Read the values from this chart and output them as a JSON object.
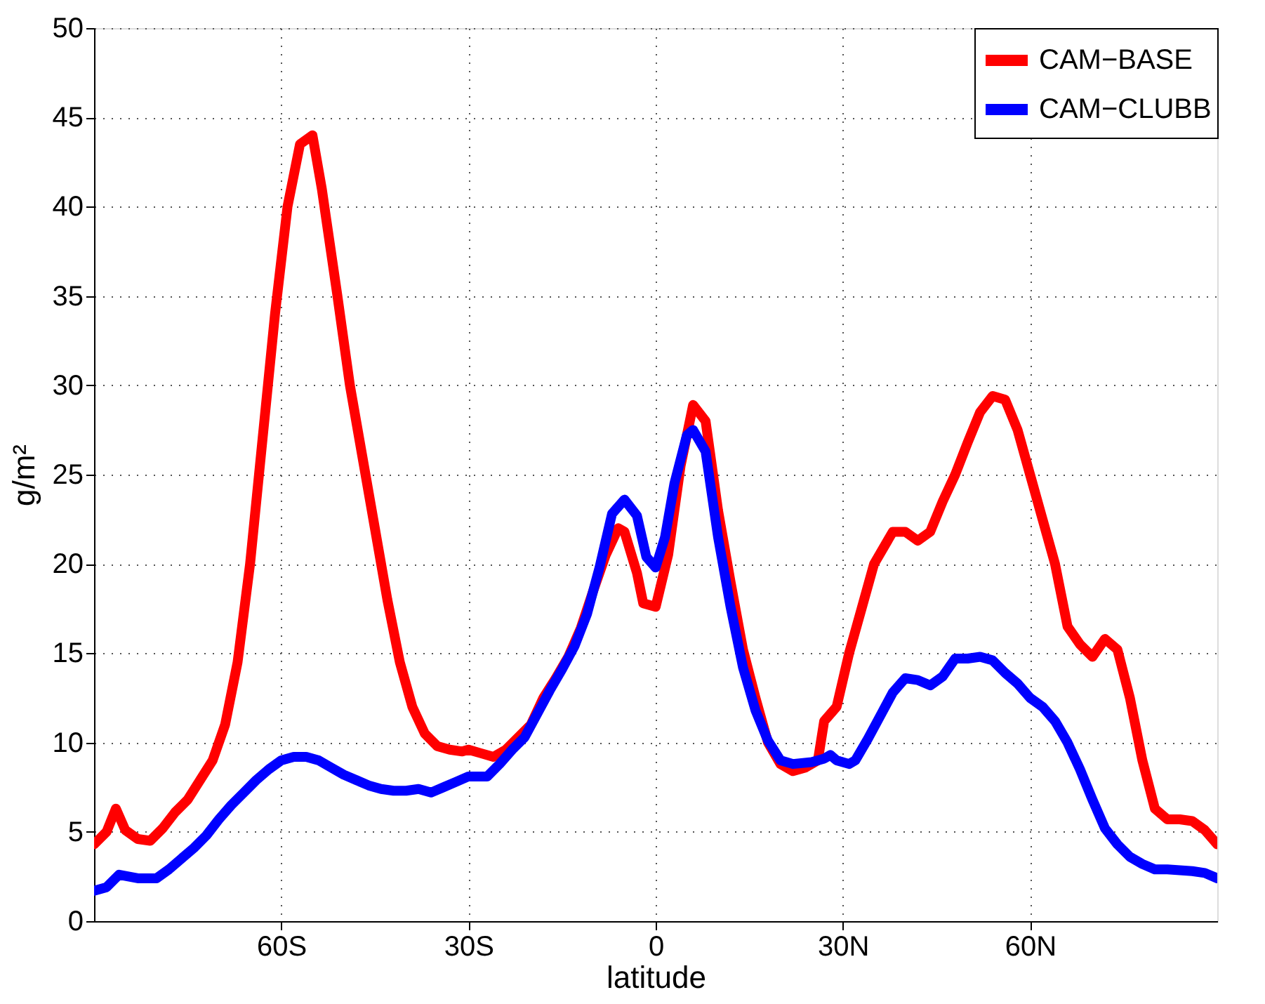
{
  "chart_data": {
    "type": "line",
    "xlabel": "latitude",
    "ylabel": "g/m²",
    "xlim": [
      -90,
      90
    ],
    "ylim": [
      0,
      50
    ],
    "xticks": [
      {
        "value": -60,
        "label": "60S"
      },
      {
        "value": -30,
        "label": "30S"
      },
      {
        "value": 0,
        "label": "0"
      },
      {
        "value": 30,
        "label": "30N"
      },
      {
        "value": 60,
        "label": "60N"
      }
    ],
    "yticks": [
      0,
      5,
      10,
      15,
      20,
      25,
      30,
      35,
      40,
      45,
      50
    ],
    "grid": true,
    "legend": "top right",
    "line_style": "solid",
    "marker": "none",
    "series": [
      {
        "name": "CAM−BASE",
        "color": "#ff0000",
        "x": [
          -90,
          -88,
          -86.5,
          -85,
          -83,
          -81,
          -79,
          -77,
          -75,
          -73,
          -71,
          -69,
          -67,
          -65,
          -63,
          -61,
          -59,
          -57,
          -55,
          -53.5,
          -51,
          -49,
          -47,
          -45,
          -43,
          -41,
          -39,
          -37,
          -35,
          -33,
          -31,
          -30,
          -28,
          -26,
          -24,
          -22,
          -20,
          -18,
          -16,
          -14,
          -12,
          -10,
          -8,
          -6,
          -5,
          -3,
          -2,
          0,
          2,
          4,
          6,
          8,
          10,
          12,
          14,
          16,
          18,
          20,
          22,
          24,
          26,
          27,
          29,
          31,
          33,
          35,
          38,
          40,
          42,
          44,
          46,
          48,
          50,
          52,
          54,
          56,
          58,
          60,
          62,
          64,
          66,
          68,
          70,
          72,
          74,
          76,
          78,
          80,
          82,
          84,
          86,
          88,
          90
        ],
        "values": [
          4.3,
          5.0,
          6.3,
          5.1,
          4.6,
          4.5,
          5.2,
          6.1,
          6.8,
          7.9,
          9.0,
          11.0,
          14.5,
          20,
          27,
          34,
          40,
          43.5,
          44,
          41,
          35,
          30,
          26,
          22,
          18,
          14.5,
          12,
          10.5,
          9.8,
          9.6,
          9.5,
          9.6,
          9.4,
          9.2,
          9.6,
          10.3,
          11,
          12.5,
          13.6,
          14.8,
          16.4,
          18.5,
          20.5,
          22,
          21.8,
          19.5,
          17.8,
          17.6,
          20.5,
          25.5,
          28.9,
          28,
          23,
          19,
          15.2,
          12.5,
          10,
          8.8,
          8.4,
          8.6,
          9.0,
          11.2,
          12,
          15,
          17.5,
          20,
          21.8,
          21.8,
          21.3,
          21.8,
          23.5,
          25,
          26.8,
          28.5,
          29.4,
          29.2,
          27.5,
          25,
          22.5,
          20,
          16.5,
          15.5,
          14.8,
          15.8,
          15.2,
          12.5,
          9,
          6.3,
          5.7,
          5.7,
          5.6,
          5.1,
          4.3
        ]
      },
      {
        "name": "CAM−CLUBB",
        "color": "#0000ff",
        "x": [
          -90,
          -88,
          -86,
          -83,
          -80,
          -78,
          -76,
          -74,
          -72,
          -70,
          -68,
          -66,
          -64,
          -62,
          -60,
          -58,
          -56,
          -54,
          -52,
          -50,
          -48,
          -46,
          -44,
          -42,
          -40,
          -38,
          -36,
          -34,
          -32,
          -30,
          -27,
          -25,
          -23,
          -21,
          -19,
          -17,
          -15,
          -13,
          -11,
          -9,
          -7,
          -5,
          -3,
          -1.5,
          0,
          1.5,
          3,
          5,
          6,
          8,
          10,
          12,
          14,
          16,
          18,
          20,
          22,
          25,
          27,
          28,
          29,
          31,
          32,
          34,
          36,
          38,
          40,
          42,
          44,
          46,
          48,
          50,
          52,
          54,
          56,
          58,
          60,
          62,
          64,
          66,
          68,
          70,
          72,
          74,
          76,
          78,
          80,
          82,
          86,
          88,
          90
        ],
        "values": [
          1.7,
          1.9,
          2.6,
          2.4,
          2.4,
          2.9,
          3.5,
          4.1,
          4.8,
          5.7,
          6.5,
          7.2,
          7.9,
          8.5,
          9.0,
          9.2,
          9.2,
          9.0,
          8.6,
          8.2,
          7.9,
          7.6,
          7.4,
          7.3,
          7.3,
          7.4,
          7.2,
          7.5,
          7.8,
          8.1,
          8.1,
          8.8,
          9.6,
          10.3,
          11.6,
          12.9,
          14.1,
          15.4,
          17.2,
          19.8,
          22.8,
          23.6,
          22.7,
          20.4,
          19.8,
          21.5,
          24.5,
          27.2,
          27.5,
          26.3,
          21.5,
          17.6,
          14.2,
          11.8,
          10.1,
          9,
          8.8,
          8.9,
          9.1,
          9.3,
          9,
          8.8,
          9.0,
          10.2,
          11.5,
          12.8,
          13.6,
          13.5,
          13.2,
          13.7,
          14.7,
          14.7,
          14.8,
          14.6,
          13.9,
          13.3,
          12.5,
          12.0,
          11.2,
          10.0,
          8.5,
          6.8,
          5.2,
          4.3,
          3.6,
          3.2,
          2.9,
          2.9,
          2.8,
          2.7,
          2.4
        ]
      }
    ]
  }
}
